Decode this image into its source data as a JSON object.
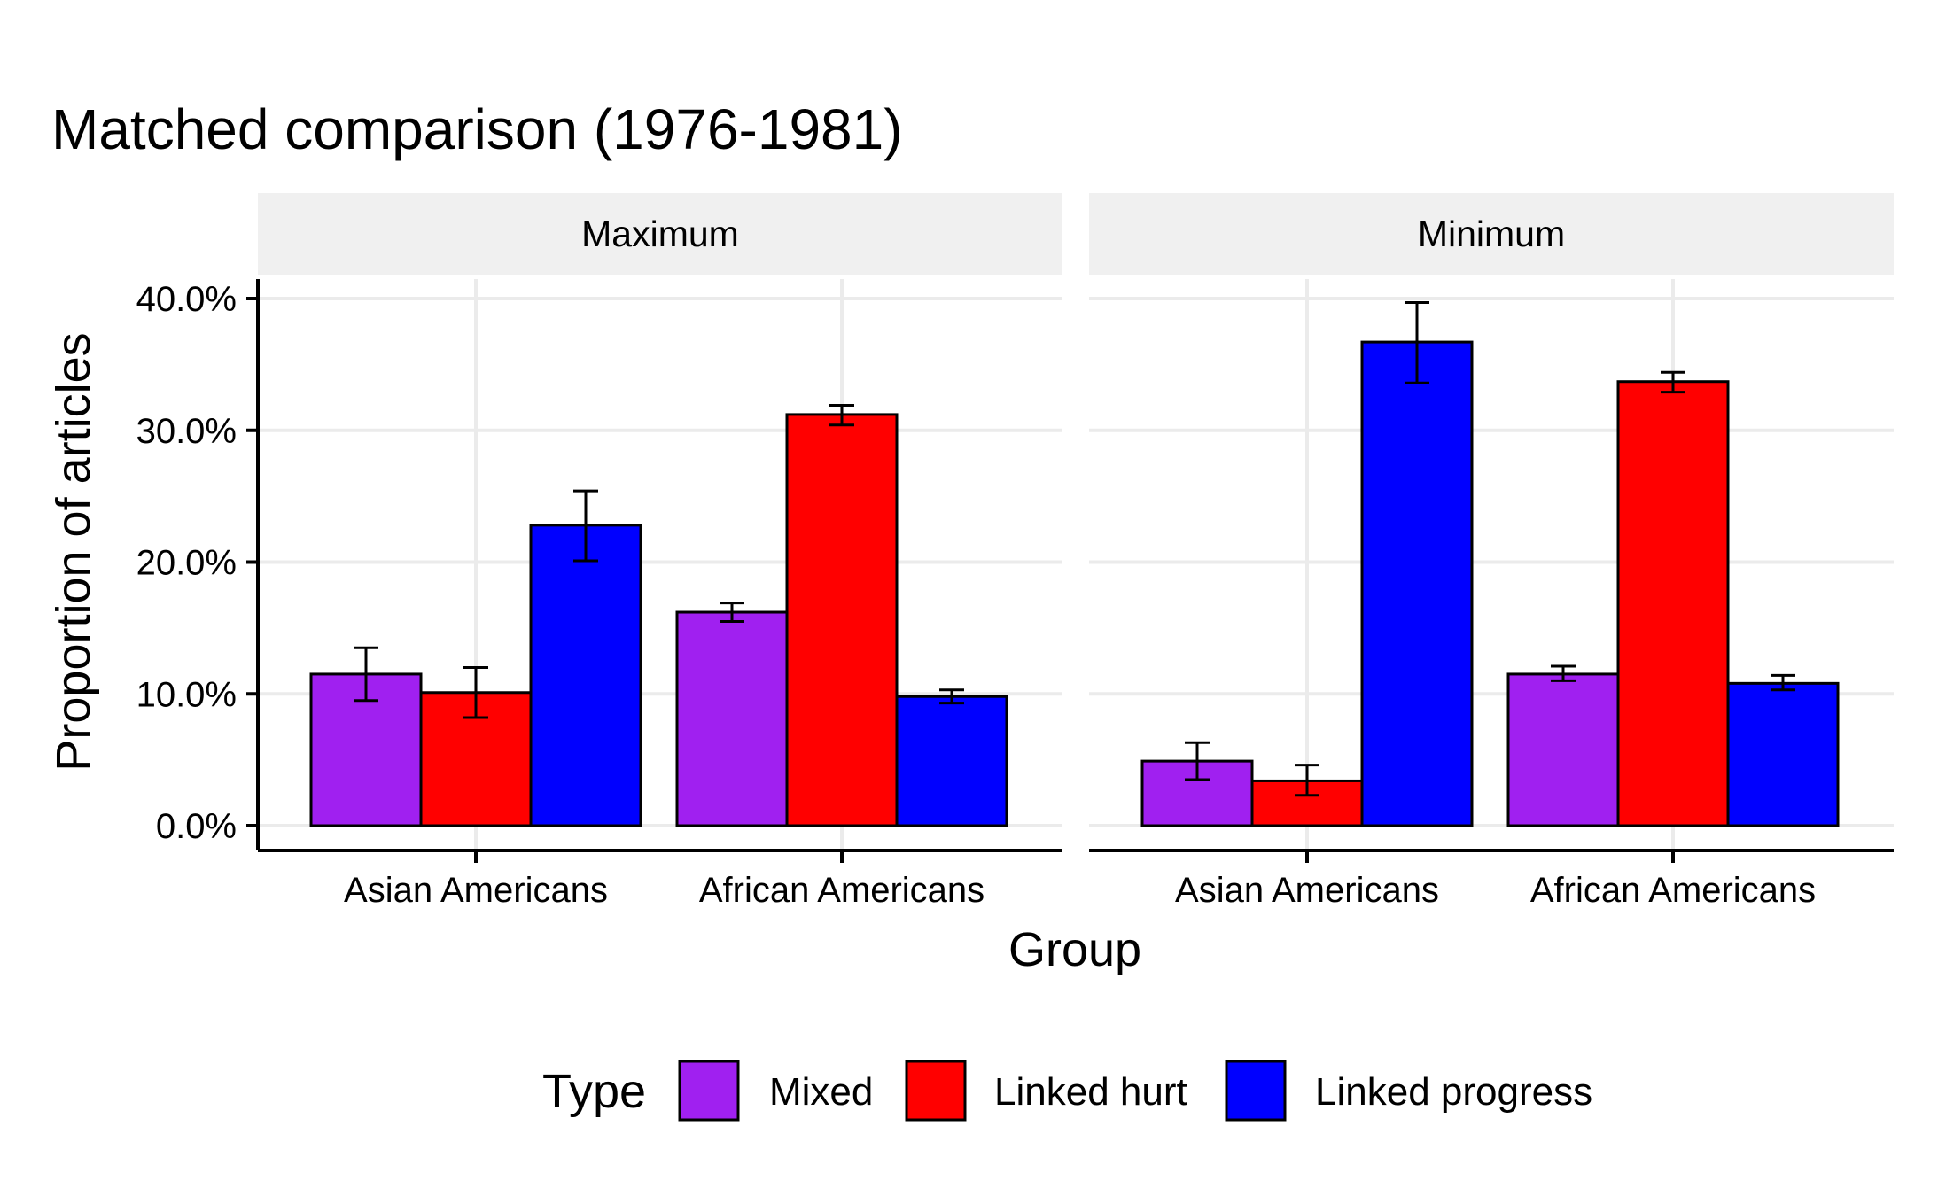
{
  "chart_data": {
    "type": "bar",
    "title": "Matched comparison (1976-1981)",
    "xlabel": "Group",
    "ylabel": "Proportion of articles",
    "ylim": [
      0,
      0.4
    ],
    "yticks": [
      {
        "value": 0.0,
        "label": "0.0%"
      },
      {
        "value": 0.1,
        "label": "10.0%"
      },
      {
        "value": 0.2,
        "label": "20.0%"
      },
      {
        "value": 0.3,
        "label": "30.0%"
      },
      {
        "value": 0.4,
        "label": "40.0%"
      }
    ],
    "grid": true,
    "legend": {
      "title": "Type",
      "placement": "bottom",
      "entries": [
        {
          "name": "Mixed",
          "color": "#a020f0"
        },
        {
          "name": "Linked hurt",
          "color": "#ff0000"
        },
        {
          "name": "Linked progress",
          "color": "#0000ff"
        }
      ]
    },
    "panels": [
      {
        "label": "Maximum",
        "categories": [
          "Asian Americans",
          "African Americans"
        ],
        "series": [
          {
            "name": "Mixed",
            "values": [
              0.115,
              0.162
            ],
            "err_low": [
              0.095,
              0.155
            ],
            "err_high": [
              0.135,
              0.169
            ]
          },
          {
            "name": "Linked hurt",
            "values": [
              0.101,
              0.312
            ],
            "err_low": [
              0.082,
              0.304
            ],
            "err_high": [
              0.12,
              0.319
            ]
          },
          {
            "name": "Linked progress",
            "values": [
              0.228,
              0.098
            ],
            "err_low": [
              0.201,
              0.093
            ],
            "err_high": [
              0.254,
              0.103
            ]
          }
        ]
      },
      {
        "label": "Minimum",
        "categories": [
          "Asian Americans",
          "African Americans"
        ],
        "series": [
          {
            "name": "Mixed",
            "values": [
              0.049,
              0.115
            ],
            "err_low": [
              0.035,
              0.11
            ],
            "err_high": [
              0.063,
              0.121
            ]
          },
          {
            "name": "Linked hurt",
            "values": [
              0.034,
              0.337
            ],
            "err_low": [
              0.023,
              0.329
            ],
            "err_high": [
              0.046,
              0.344
            ]
          },
          {
            "name": "Linked progress",
            "values": [
              0.367,
              0.108
            ],
            "err_low": [
              0.336,
              0.103
            ],
            "err_high": [
              0.397,
              0.114
            ]
          }
        ]
      }
    ]
  }
}
